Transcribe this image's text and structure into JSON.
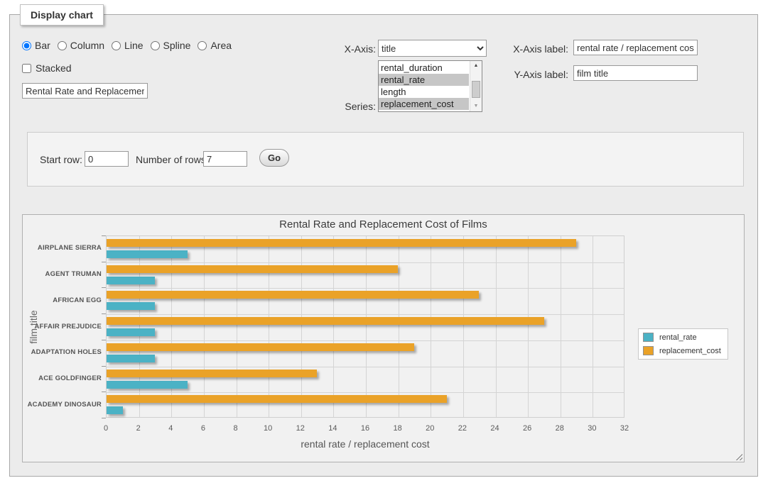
{
  "panel": {
    "legend": "Display chart"
  },
  "chart_type": {
    "options": [
      "Bar",
      "Column",
      "Line",
      "Spline",
      "Area"
    ],
    "selected": "Bar"
  },
  "stacked": {
    "label": "Stacked",
    "checked": false
  },
  "chart_title_input": {
    "value": "Rental Rate and Replacement Cost of Films"
  },
  "x_axis": {
    "label": "X-Axis:",
    "selected": "title"
  },
  "series_select": {
    "label": "Series:",
    "options": [
      "rental_duration",
      "rental_rate",
      "length",
      "replacement_cost"
    ],
    "selected": [
      "rental_rate",
      "replacement_cost"
    ]
  },
  "x_axis_label_field": {
    "label": "X-Axis label:",
    "value": "rental rate / replacement cost"
  },
  "y_axis_label_field": {
    "label": "Y-Axis label:",
    "value": "film title"
  },
  "row_controls": {
    "start_row_label": "Start row:",
    "start_row_value": "0",
    "num_rows_label": "Number of rows:",
    "num_rows_value": "7",
    "go_label": "Go"
  },
  "chart_data": {
    "type": "bar",
    "orientation": "horizontal",
    "title": "Rental Rate and Replacement Cost of Films",
    "categories": [
      "AIRPLANE SIERRA",
      "AGENT TRUMAN",
      "AFRICAN EGG",
      "AFFAIR PREJUDICE",
      "ADAPTATION HOLES",
      "ACE GOLDFINGER",
      "ACADEMY DINOSAUR"
    ],
    "series": [
      {
        "name": "rental_rate",
        "color": "#4bb2c5",
        "values": [
          4.99,
          2.99,
          2.99,
          2.99,
          2.99,
          4.99,
          0.99
        ]
      },
      {
        "name": "replacement_cost",
        "color": "#eaa228",
        "values": [
          28.99,
          17.99,
          22.99,
          26.99,
          18.99,
          12.99,
          20.99
        ]
      }
    ],
    "xlabel": "rental rate / replacement cost",
    "ylabel": "film title",
    "xlim": [
      0,
      32
    ],
    "xtick_step": 2,
    "legend_position": "right",
    "grid": true
  }
}
